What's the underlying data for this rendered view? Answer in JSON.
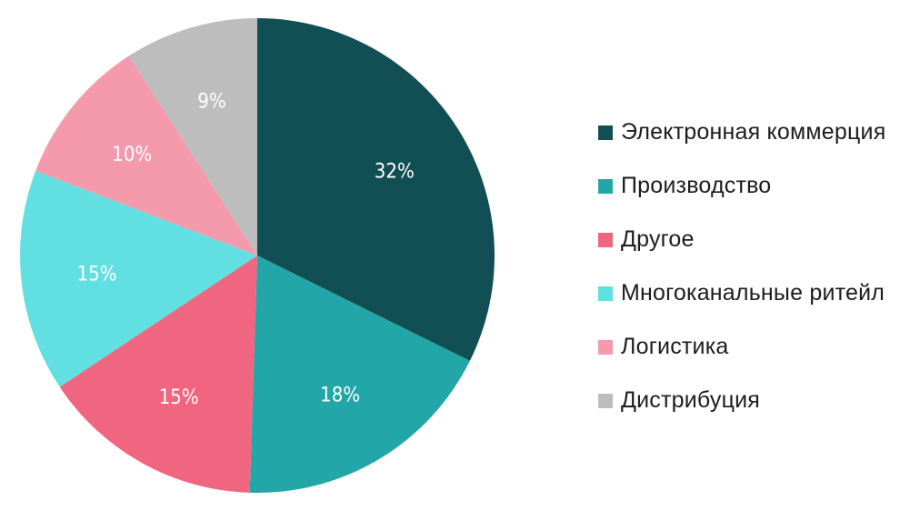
{
  "chart_data": {
    "type": "pie",
    "title": "",
    "categories": [
      "Электронная коммерция",
      "Производство",
      "Другое",
      "Многоканальные ритейл",
      "Логистика",
      "Дистрибуция"
    ],
    "values": [
      32,
      18,
      15,
      15,
      10,
      9
    ],
    "labels": [
      "32%",
      "18%",
      "15%",
      "15%",
      "10%",
      "9%"
    ],
    "colors": [
      "#114f54",
      "#22a6a7",
      "#f06580",
      "#62dfe0",
      "#f59aac",
      "#bdbdbd"
    ],
    "legend_position": "right",
    "start_angle": "12 o'clock",
    "direction": "clockwise"
  },
  "legend": {
    "items": [
      {
        "label": "Электронная коммерция",
        "color": "#114f54"
      },
      {
        "label": "Производство",
        "color": "#22a6a7"
      },
      {
        "label": "Другое",
        "color": "#f06580"
      },
      {
        "label": "Многоканальные ритейл",
        "color": "#62dfe0"
      },
      {
        "label": "Логистика",
        "color": "#f59aac"
      },
      {
        "label": "Дистрибуция",
        "color": "#bdbdbd"
      }
    ]
  }
}
